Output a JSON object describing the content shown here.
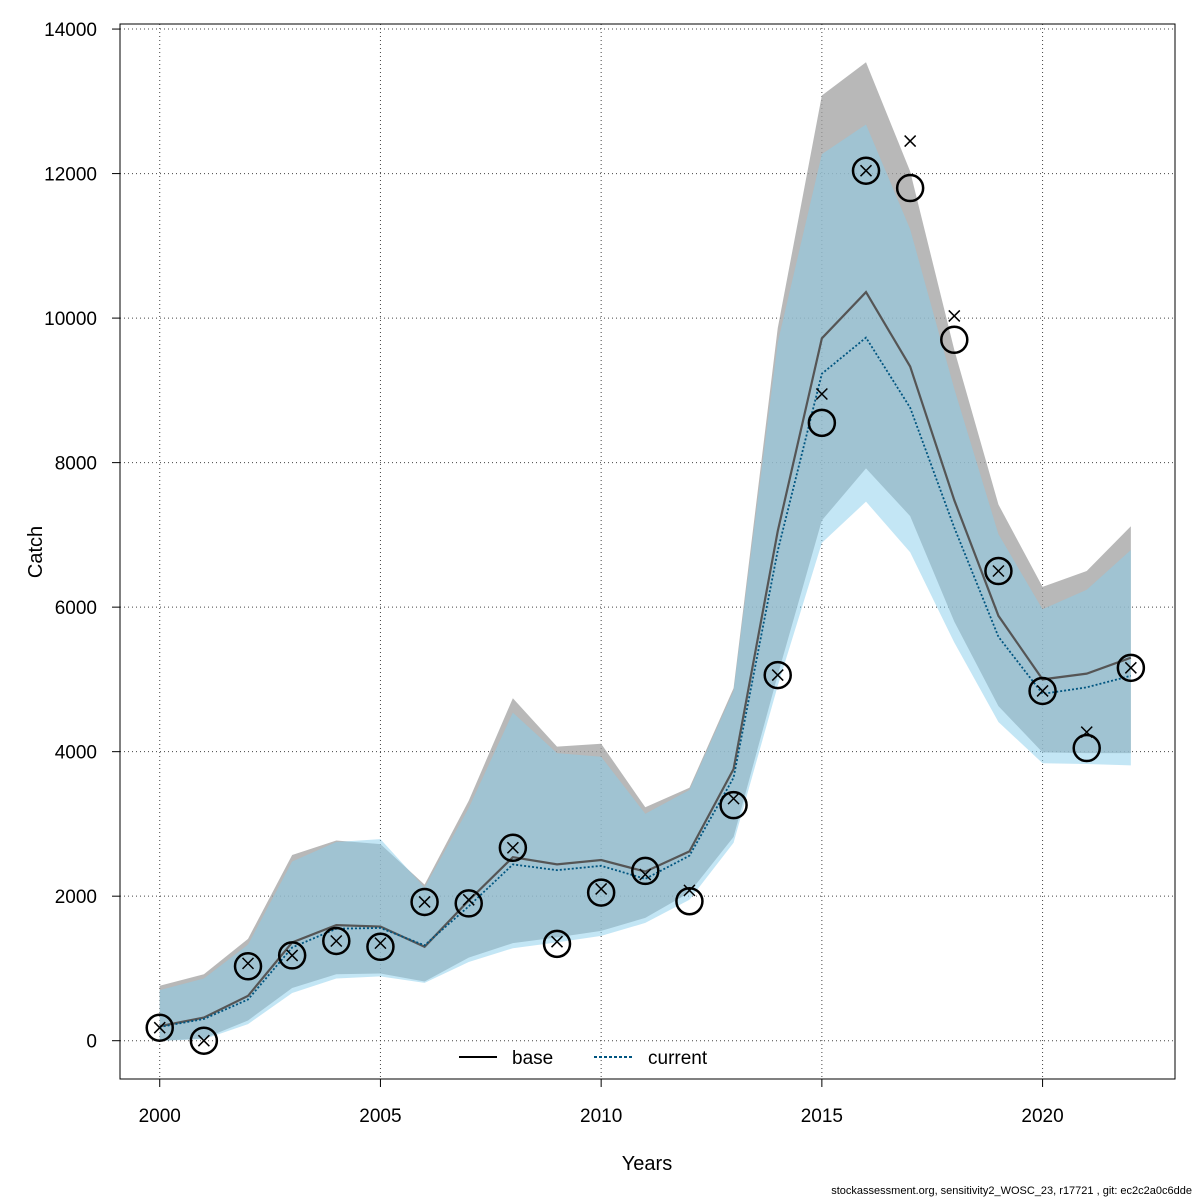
{
  "chart_data": {
    "type": "line",
    "title": "",
    "xlabel": "Years",
    "ylabel": "Catch",
    "xlim": [
      1999.1,
      2023.0
    ],
    "ylim": [
      -530,
      14070
    ],
    "x_ticks": [
      2000,
      2005,
      2010,
      2015,
      2020
    ],
    "y_ticks": [
      0,
      2000,
      4000,
      6000,
      8000,
      10000,
      12000,
      14000
    ],
    "grid": true,
    "legend_position": "bottom-center",
    "x": [
      2000,
      2001,
      2002,
      2003,
      2004,
      2005,
      2006,
      2007,
      2008,
      2009,
      2010,
      2011,
      2012,
      2013,
      2014,
      2015,
      2016,
      2017,
      2018,
      2019,
      2020,
      2021,
      2022
    ],
    "series": [
      {
        "name": "base",
        "line_style": "solid",
        "color": "#555555",
        "band_color": "#a0a0a0",
        "values": [
          200,
          320,
          620,
          1360,
          1600,
          1580,
          1300,
          1940,
          2540,
          2440,
          2500,
          2340,
          2620,
          3760,
          7050,
          9720,
          10360,
          9330,
          7480,
          5880,
          5000,
          5080,
          5300
        ],
        "lower": [
          0,
          30,
          280,
          730,
          920,
          930,
          820,
          1150,
          1350,
          1430,
          1520,
          1700,
          2050,
          2820,
          5060,
          7200,
          7920,
          7260,
          5800,
          4630,
          3990,
          3980,
          3980
        ],
        "upper": [
          760,
          920,
          1410,
          2570,
          2770,
          2720,
          2160,
          3320,
          4740,
          4070,
          4110,
          3230,
          3500,
          4880,
          9860,
          13080,
          13540,
          12030,
          9560,
          7420,
          6280,
          6500,
          7120
        ]
      },
      {
        "name": "current",
        "line_style": "dotted",
        "color": "#005580",
        "band_color": "#87ceeb",
        "values": [
          190,
          300,
          570,
          1290,
          1550,
          1560,
          1320,
          1860,
          2440,
          2360,
          2420,
          2240,
          2560,
          3640,
          6780,
          9230,
          9730,
          8760,
          7100,
          5590,
          4800,
          4890,
          5050
        ],
        "lower": [
          0,
          20,
          230,
          660,
          860,
          890,
          800,
          1090,
          1280,
          1360,
          1450,
          1630,
          1950,
          2740,
          4910,
          6890,
          7460,
          6760,
          5510,
          4410,
          3840,
          3830,
          3810
        ],
        "upper": [
          700,
          860,
          1330,
          2480,
          2750,
          2790,
          2120,
          3220,
          4540,
          3980,
          3930,
          3140,
          3470,
          4840,
          9660,
          12270,
          12680,
          11230,
          9020,
          7010,
          5970,
          6240,
          6790
        ]
      }
    ],
    "observed_circles": {
      "x": [
        2000,
        2001,
        2002,
        2003,
        2004,
        2005,
        2006,
        2007,
        2008,
        2009,
        2010,
        2011,
        2012,
        2013,
        2014,
        2015,
        2016,
        2017,
        2018,
        2019,
        2020,
        2021,
        2022
      ],
      "y": [
        180,
        0,
        1030,
        1180,
        1380,
        1300,
        1920,
        1900,
        2670,
        1340,
        2050,
        2350,
        1930,
        3260,
        5060,
        8550,
        12040,
        11800,
        9700,
        6500,
        4840,
        4050,
        5160
      ]
    },
    "observed_crosses": {
      "x": [
        2000,
        2001,
        2002,
        2003,
        2004,
        2005,
        2006,
        2007,
        2008,
        2009,
        2010,
        2011,
        2012,
        2013,
        2014,
        2015,
        2016,
        2017,
        2018,
        2019,
        2020,
        2021,
        2022
      ],
      "y": [
        180,
        0,
        1070,
        1180,
        1380,
        1350,
        1920,
        1950,
        2670,
        1370,
        2100,
        2300,
        2080,
        3350,
        5060,
        8950,
        12040,
        12450,
        10030,
        6500,
        4840,
        4270,
        5160
      ]
    }
  },
  "footer": "stockassessment.org, sensitivity2_WOSC_23, r17721 , git: ec2c2a0c6dde"
}
